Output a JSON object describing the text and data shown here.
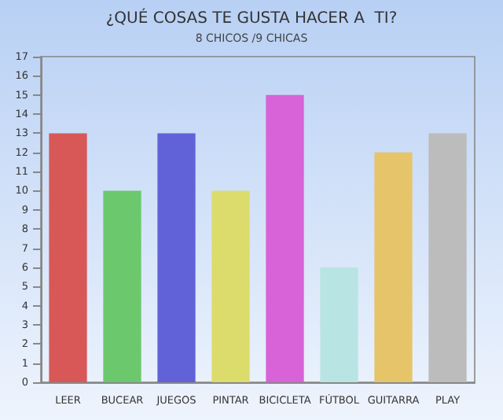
{
  "chart_data": {
    "type": "bar",
    "title": "¿QUÉ COSAS TE GUSTA HACER A  TI?",
    "subtitle": "8 CHICOS /9 CHICAS",
    "categories": [
      "LEER",
      "BUCEAR",
      "JUEGOS",
      "PINTAR",
      "BICICLETA",
      "FÚTBOL",
      "GUITARRA",
      "PLAY"
    ],
    "values": [
      13,
      10,
      13,
      10,
      15,
      6,
      12,
      13
    ],
    "colors": [
      "#d85858",
      "#6cc86c",
      "#6262d8",
      "#dcdc6c",
      "#d862d8",
      "#b8e4e4",
      "#e6c46a",
      "#bcbcbc"
    ],
    "ylim": [
      0,
      17
    ],
    "yticks": [
      0,
      1,
      2,
      3,
      4,
      5,
      6,
      7,
      8,
      9,
      10,
      11,
      12,
      13,
      14,
      15,
      16,
      17
    ],
    "grid": false
  }
}
